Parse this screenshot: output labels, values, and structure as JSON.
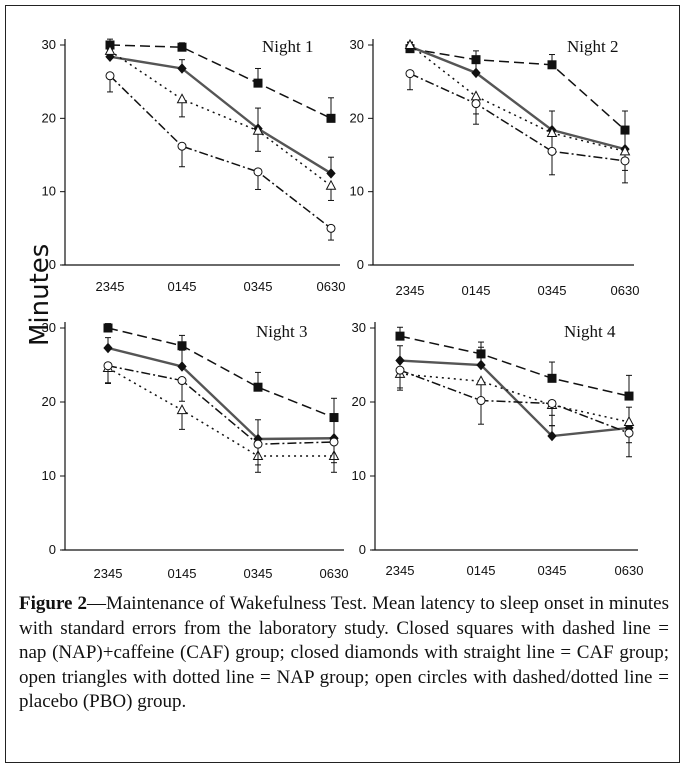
{
  "y_axis_label": "Minutes",
  "caption": {
    "label": "Figure 2",
    "text": "—Maintenance of Wakefulness Test. Mean latency to sleep onset in minutes with standard errors from the laboratory study. Closed squares with dashed line = nap (NAP)+caffeine (CAF) group; closed diamonds with straight line = CAF group; open triangles with dotted line = NAP group; open circles with dashed/dotted line = placebo (PBO) group."
  },
  "series_styles": [
    {
      "marker": "square",
      "filled": true,
      "line": "dashed",
      "color": "#111111"
    },
    {
      "marker": "diamond",
      "filled": true,
      "line": "solid",
      "color": "#555555"
    },
    {
      "marker": "triangle",
      "filled": false,
      "line": "dotted",
      "color": "#111111"
    },
    {
      "marker": "circle",
      "filled": false,
      "line": "dashdot",
      "color": "#111111"
    }
  ],
  "chart_data": [
    {
      "type": "line",
      "title": "Night 1",
      "categories": [
        "2345",
        "0145",
        "0345",
        "0630"
      ],
      "yticks": [
        0,
        10,
        20,
        30
      ],
      "ylim": [
        0,
        30
      ],
      "series": [
        {
          "values": [
            30.0,
            29.7,
            24.8,
            20.0
          ],
          "errors": [
            0.8,
            0.6,
            2.0,
            2.8
          ]
        },
        {
          "values": [
            28.4,
            26.8,
            18.6,
            12.5
          ],
          "errors": [
            1.0,
            1.2,
            2.8,
            2.2
          ]
        },
        {
          "values": [
            29.2,
            22.6,
            18.3,
            10.8
          ],
          "errors": [
            1.0,
            2.4,
            2.8,
            2.0
          ]
        },
        {
          "values": [
            25.8,
            16.2,
            12.7,
            5.0
          ],
          "errors": [
            2.2,
            2.8,
            2.4,
            1.6
          ]
        }
      ]
    },
    {
      "type": "line",
      "title": "Night 2",
      "categories": [
        "2345",
        "0145",
        "0345",
        "0630"
      ],
      "yticks": [
        0,
        10,
        20,
        30
      ],
      "ylim": [
        0,
        30
      ],
      "series": [
        {
          "values": [
            29.5,
            28.0,
            27.3,
            18.4
          ],
          "errors": [
            0.8,
            1.2,
            1.4,
            2.6
          ]
        },
        {
          "values": [
            29.8,
            26.2,
            18.4,
            15.8
          ],
          "errors": [
            0.6,
            2.2,
            2.6,
            2.4
          ]
        },
        {
          "values": [
            30.0,
            23.0,
            18.0,
            15.5
          ],
          "errors": [
            0.6,
            2.4,
            2.6,
            2.6
          ]
        },
        {
          "values": [
            26.1,
            22.0,
            15.5,
            14.2
          ],
          "errors": [
            2.2,
            2.8,
            3.2,
            3.0
          ]
        }
      ]
    },
    {
      "type": "line",
      "title": "Night 3",
      "categories": [
        "2345",
        "0145",
        "0345",
        "0630"
      ],
      "yticks": [
        0,
        10,
        20,
        30
      ],
      "ylim": [
        0,
        30
      ],
      "series": [
        {
          "values": [
            30.0,
            27.6,
            22.0,
            17.9
          ],
          "errors": [
            0.6,
            1.4,
            2.0,
            2.6
          ]
        },
        {
          "values": [
            27.3,
            24.8,
            15.0,
            15.1
          ],
          "errors": [
            1.4,
            2.2,
            2.6,
            2.8
          ]
        },
        {
          "values": [
            24.6,
            18.9,
            12.7,
            12.7
          ],
          "errors": [
            2.0,
            2.6,
            2.2,
            2.2
          ]
        },
        {
          "values": [
            24.9,
            22.9,
            14.3,
            14.6
          ],
          "errors": [
            2.4,
            2.8,
            2.8,
            2.8
          ]
        }
      ]
    },
    {
      "type": "line",
      "title": "Night 4",
      "categories": [
        "2345",
        "0145",
        "0345",
        "0630"
      ],
      "yticks": [
        0,
        10,
        20,
        30
      ],
      "ylim": [
        0,
        30
      ],
      "series": [
        {
          "values": [
            28.9,
            26.5,
            23.2,
            20.8
          ],
          "errors": [
            1.2,
            1.6,
            2.2,
            2.8
          ]
        },
        {
          "values": [
            25.6,
            25.0,
            15.4,
            16.5
          ],
          "errors": [
            2.0,
            2.4,
            2.8,
            2.8
          ]
        },
        {
          "values": [
            23.8,
            22.8,
            19.6,
            17.3
          ],
          "errors": [
            2.2,
            2.6,
            2.8,
            2.8
          ]
        },
        {
          "values": [
            24.3,
            20.2,
            19.8,
            15.8
          ],
          "errors": [
            2.4,
            3.2,
            3.0,
            3.2
          ]
        }
      ]
    }
  ]
}
